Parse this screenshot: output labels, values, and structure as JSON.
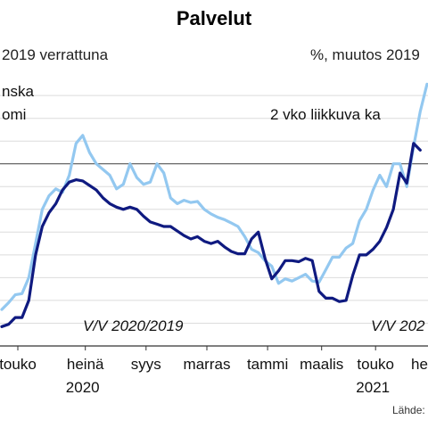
{
  "chart_data": {
    "type": "line",
    "title": "Palvelut",
    "subtitle_left": "2019 verrattuna",
    "subtitle_right": "%, muutos 2019",
    "series": [
      {
        "name": "nska omi",
        "name_lines": [
          "nska",
          "omi"
        ],
        "color": "#0f1a80",
        "values": [
          -63,
          -61,
          -55,
          -55,
          -40,
          0,
          25,
          37,
          45,
          57,
          64,
          66,
          65,
          61,
          57,
          50,
          45,
          42,
          40,
          42,
          40,
          34,
          29,
          27,
          25,
          25,
          21,
          17,
          14,
          16,
          12,
          10,
          12,
          7,
          3,
          1,
          1,
          14,
          20,
          -3,
          -21,
          -14,
          -5,
          -5,
          -6,
          -3,
          -5,
          -32,
          -38,
          -38,
          -41,
          -40,
          -18,
          0,
          0,
          5,
          12,
          24,
          40,
          72,
          63,
          98,
          92
        ]
      },
      {
        "name": "2 vko liikkuva ka",
        "name_lines": [
          "2 vko liikkuva ka"
        ],
        "color": "#93c8f0",
        "values": [
          -48,
          -42,
          -35,
          -34,
          -20,
          10,
          40,
          52,
          58,
          55,
          70,
          98,
          105,
          90,
          80,
          75,
          70,
          58,
          62,
          80,
          68,
          62,
          64,
          80,
          72,
          50,
          45,
          48,
          46,
          47,
          40,
          36,
          33,
          31,
          28,
          25,
          16,
          5,
          2,
          -5,
          -10,
          -25,
          -21,
          -23,
          -20,
          -17,
          -23,
          -24,
          -13,
          -2,
          -2,
          6,
          10,
          30,
          40,
          57,
          70,
          60,
          80,
          80,
          60,
          95,
          126,
          150
        ]
      }
    ],
    "reference_line": 80,
    "ylim": [
      -80,
      155
    ],
    "x_tick_labels": [
      "touko",
      "heinä",
      "syys",
      "marras",
      "tammi",
      "maalis",
      "touko",
      "heinä"
    ],
    "year_labels": [
      "2020",
      "2021"
    ],
    "annotations": [
      "V/V 2020/2019",
      "V/V 202"
    ],
    "grid": true,
    "legend": "inline"
  },
  "source": "Lähde:"
}
